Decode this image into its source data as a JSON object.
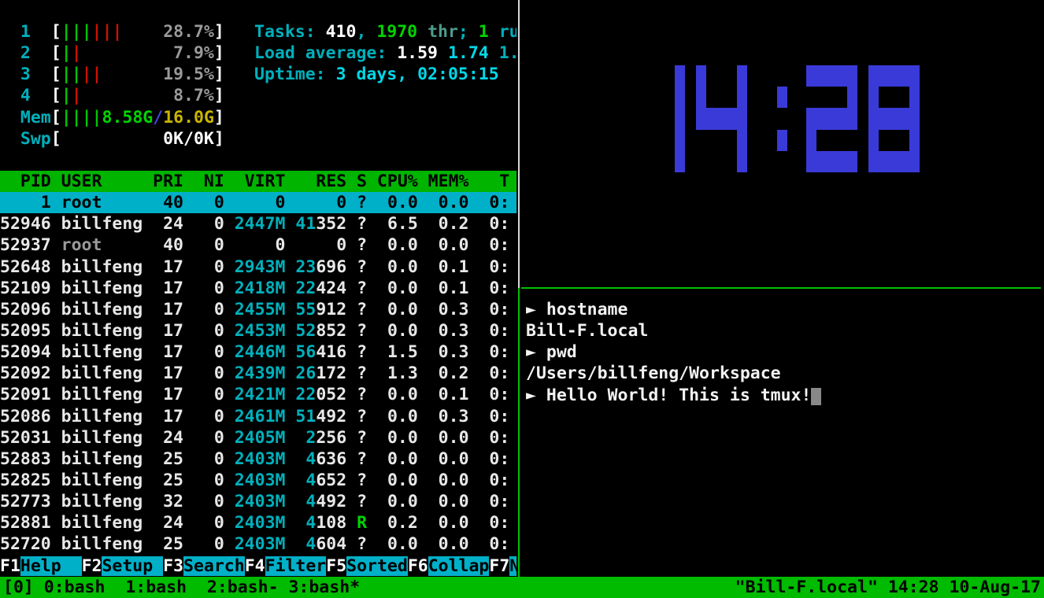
{
  "colors": {
    "background": "#000000",
    "cyan": "#00b0bc",
    "bright_cyan": "#00d8e8",
    "dim_cyan": "#4e9c8c",
    "green": "#00c400",
    "bright_green": "#00d400",
    "red": "#cc1100",
    "gray": "#9a9a9a",
    "yellow": "#c9b500",
    "blue": "#4444e0",
    "white": "#e8e8e8",
    "header_bg": "#00b400",
    "selected_bg": "#00b0c8",
    "fkey_bg": "#00b0c8",
    "tmux_bg": "#00bb00",
    "clock_blue": "#3a3ad9",
    "divider_white": "#d8d8d8",
    "divider_green": "#00c000",
    "cursor": "#888888"
  },
  "htop": {
    "meters": [
      {
        "label": "1",
        "bars": [
          "g",
          "g",
          "g",
          "r",
          "r",
          "r"
        ],
        "text": "28.7%",
        "text_color": "gray"
      },
      {
        "label": "2",
        "bars": [
          "g",
          "r"
        ],
        "text": "7.9%",
        "text_color": "gray"
      },
      {
        "label": "3",
        "bars": [
          "g",
          "g",
          "r",
          "r"
        ],
        "text": "19.5%",
        "text_color": "gray"
      },
      {
        "label": "4",
        "bars": [
          "g",
          "r"
        ],
        "text": "8.7%",
        "text_color": "gray"
      },
      {
        "label": "Mem",
        "bars": [
          "g",
          "g",
          "g",
          "g"
        ],
        "segments": [
          {
            "t": "8.58G",
            "c": "green"
          },
          {
            "t": "/",
            "c": "blue"
          },
          {
            "t": "16.0G",
            "c": "yellow"
          }
        ]
      },
      {
        "label": "Swp",
        "bars": [],
        "segments": [
          {
            "t": "0K/0K",
            "c": "white"
          }
        ]
      }
    ],
    "summary": [
      {
        "segments": [
          {
            "t": "Tasks: ",
            "c": "cyan"
          },
          {
            "t": "410",
            "c": "white"
          },
          {
            "t": ", ",
            "c": "cyan"
          },
          {
            "t": "1970",
            "c": "green"
          },
          {
            "t": " thr",
            "c": "dimcyan"
          },
          {
            "t": "; ",
            "c": "cyan"
          },
          {
            "t": "1",
            "c": "green"
          },
          {
            "t": " ru",
            "c": "cyan"
          }
        ]
      },
      {
        "segments": [
          {
            "t": "Load average: ",
            "c": "cyan"
          },
          {
            "t": "1.59 ",
            "c": "white"
          },
          {
            "t": "1.74 ",
            "c": "brightcyan"
          },
          {
            "t": "1.",
            "c": "cyan"
          }
        ]
      },
      {
        "segments": [
          {
            "t": "Uptime: ",
            "c": "cyan"
          },
          {
            "t": "3 days, 02:05:15",
            "c": "brightcyan"
          }
        ]
      }
    ],
    "columns": {
      "pid": "PID",
      "user": "USER",
      "pri": "PRI",
      "ni": "NI",
      "virt": "VIRT",
      "res": "RES",
      "s": "S",
      "cpu": "CPU%",
      "mem": "MEM%",
      "time": "T"
    },
    "processes": [
      {
        "pid": "1",
        "user": "root",
        "pri": "40",
        "ni": "0",
        "virt": "0",
        "res": "0",
        "s": "?",
        "cpu": "0.0",
        "mem": "0.0",
        "time": "0:",
        "selected": true
      },
      {
        "pid": "52946",
        "user": "billfeng",
        "pri": "24",
        "ni": "0",
        "virt": "2447M",
        "res": "41352",
        "s": "?",
        "cpu": "6.5",
        "mem": "0.2",
        "time": "0:"
      },
      {
        "pid": "52937",
        "user": "root",
        "pri": "40",
        "ni": "0",
        "virt": "0",
        "res": "0",
        "s": "?",
        "cpu": "0.0",
        "mem": "0.0",
        "time": "0:",
        "user_dim": true
      },
      {
        "pid": "52648",
        "user": "billfeng",
        "pri": "17",
        "ni": "0",
        "virt": "2943M",
        "res": "23696",
        "s": "?",
        "cpu": "0.0",
        "mem": "0.1",
        "time": "0:"
      },
      {
        "pid": "52109",
        "user": "billfeng",
        "pri": "17",
        "ni": "0",
        "virt": "2418M",
        "res": "22424",
        "s": "?",
        "cpu": "0.0",
        "mem": "0.1",
        "time": "0:"
      },
      {
        "pid": "52096",
        "user": "billfeng",
        "pri": "17",
        "ni": "0",
        "virt": "2455M",
        "res": "55912",
        "s": "?",
        "cpu": "0.0",
        "mem": "0.3",
        "time": "0:"
      },
      {
        "pid": "52095",
        "user": "billfeng",
        "pri": "17",
        "ni": "0",
        "virt": "2453M",
        "res": "52852",
        "s": "?",
        "cpu": "0.0",
        "mem": "0.3",
        "time": "0:"
      },
      {
        "pid": "52094",
        "user": "billfeng",
        "pri": "17",
        "ni": "0",
        "virt": "2446M",
        "res": "56416",
        "s": "?",
        "cpu": "1.5",
        "mem": "0.3",
        "time": "0:"
      },
      {
        "pid": "52092",
        "user": "billfeng",
        "pri": "17",
        "ni": "0",
        "virt": "2439M",
        "res": "26172",
        "s": "?",
        "cpu": "1.3",
        "mem": "0.2",
        "time": "0:"
      },
      {
        "pid": "52091",
        "user": "billfeng",
        "pri": "17",
        "ni": "0",
        "virt": "2421M",
        "res": "22052",
        "s": "?",
        "cpu": "0.0",
        "mem": "0.1",
        "time": "0:"
      },
      {
        "pid": "52086",
        "user": "billfeng",
        "pri": "17",
        "ni": "0",
        "virt": "2461M",
        "res": "51492",
        "s": "?",
        "cpu": "0.0",
        "mem": "0.3",
        "time": "0:"
      },
      {
        "pid": "52031",
        "user": "billfeng",
        "pri": "24",
        "ni": "0",
        "virt": "2405M",
        "res": "2256",
        "s": "?",
        "cpu": "0.0",
        "mem": "0.0",
        "time": "0:"
      },
      {
        "pid": "52883",
        "user": "billfeng",
        "pri": "25",
        "ni": "0",
        "virt": "2403M",
        "res": "4636",
        "s": "?",
        "cpu": "0.0",
        "mem": "0.0",
        "time": "0:"
      },
      {
        "pid": "52825",
        "user": "billfeng",
        "pri": "25",
        "ni": "0",
        "virt": "2403M",
        "res": "4652",
        "s": "?",
        "cpu": "0.0",
        "mem": "0.0",
        "time": "0:"
      },
      {
        "pid": "52773",
        "user": "billfeng",
        "pri": "32",
        "ni": "0",
        "virt": "2403M",
        "res": "4492",
        "s": "?",
        "cpu": "0.0",
        "mem": "0.0",
        "time": "0:"
      },
      {
        "pid": "52881",
        "user": "billfeng",
        "pri": "24",
        "ni": "0",
        "virt": "2403M",
        "res": "4108",
        "s": "R",
        "cpu": "0.2",
        "mem": "0.0",
        "time": "0:"
      },
      {
        "pid": "52720",
        "user": "billfeng",
        "pri": "25",
        "ni": "0",
        "virt": "2403M",
        "res": "4604",
        "s": "?",
        "cpu": "0.0",
        "mem": "0.0",
        "time": "0:"
      }
    ],
    "fkeys": [
      {
        "key": "F1",
        "label": "Help  "
      },
      {
        "key": "F2",
        "label": "Setup "
      },
      {
        "key": "F3",
        "label": "Search"
      },
      {
        "key": "F4",
        "label": "Filter"
      },
      {
        "key": "F5",
        "label": "Sorted"
      },
      {
        "key": "F6",
        "label": "Collap"
      },
      {
        "key": "F7",
        "label": "N"
      }
    ]
  },
  "clock": {
    "time": "14:28"
  },
  "shell": {
    "prompt_symbol": "►",
    "lines": [
      {
        "prompt": true,
        "text": "hostname"
      },
      {
        "prompt": false,
        "text": "Bill-F.local"
      },
      {
        "prompt": true,
        "text": "pwd"
      },
      {
        "prompt": false,
        "text": "/Users/billfeng/Workspace"
      },
      {
        "prompt": true,
        "text": "Hello World! This is tmux!",
        "cursor": true
      }
    ]
  },
  "tmux": {
    "session": "[0]",
    "windows": [
      "0:bash ",
      "1:bash ",
      "2:bash-",
      "3:bash*"
    ],
    "host": "\"Bill-F.local\"",
    "time": "14:28",
    "date": "10-Aug-17"
  }
}
